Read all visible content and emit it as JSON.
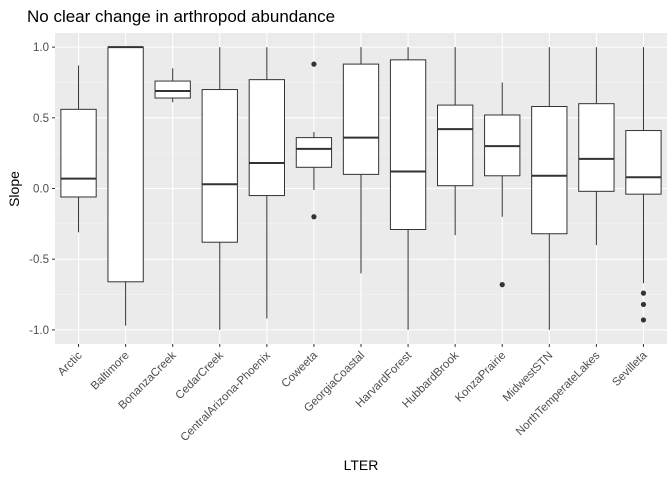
{
  "chart_data": {
    "type": "boxplot",
    "title": "No clear change in arthropod abundance",
    "xlabel": "LTER",
    "ylabel": "Slope",
    "ylim": [
      -1.1,
      1.1
    ],
    "yticks": [
      -1.0,
      -0.5,
      0.0,
      0.5,
      1.0
    ],
    "ytick_labels": [
      "-1.0",
      "-0.5",
      "0.0",
      "0.5",
      "1.0"
    ],
    "grid": true,
    "colors": {
      "panel": "#ebebeb",
      "grid_major": "#ffffff",
      "grid_minor": "#f5f5f5",
      "box_fill": "#ffffff",
      "line": "#333333",
      "outlier": "#333333"
    },
    "categories": [
      "Arctic",
      "Baltimore",
      "BonanzaCreek",
      "CedarCreek",
      "CentralArizona-Phoenix",
      "Coweeta",
      "GeorgiaCoastal",
      "HarvardForest",
      "HubbardBrook",
      "KonzaPrairie",
      "MidwestSTN",
      "NorthTemperateLakes",
      "Sevilleta"
    ],
    "boxes": [
      {
        "min": -0.31,
        "q1": -0.06,
        "median": 0.07,
        "q3": 0.56,
        "max": 0.87,
        "outliers": []
      },
      {
        "min": -0.97,
        "q1": -0.66,
        "median": 1.0,
        "q3": 1.0,
        "max": 1.0,
        "outliers": []
      },
      {
        "min": 0.61,
        "q1": 0.64,
        "median": 0.69,
        "q3": 0.76,
        "max": 0.85,
        "outliers": []
      },
      {
        "min": -1.0,
        "q1": -0.38,
        "median": 0.03,
        "q3": 0.7,
        "max": 1.0,
        "outliers": []
      },
      {
        "min": -0.92,
        "q1": -0.05,
        "median": 0.18,
        "q3": 0.77,
        "max": 1.0,
        "outliers": []
      },
      {
        "min": -0.01,
        "q1": 0.15,
        "median": 0.28,
        "q3": 0.36,
        "max": 0.4,
        "outliers": [
          0.88,
          -0.2
        ]
      },
      {
        "min": -0.6,
        "q1": 0.1,
        "median": 0.36,
        "q3": 0.88,
        "max": 1.0,
        "outliers": []
      },
      {
        "min": -1.0,
        "q1": -0.29,
        "median": 0.12,
        "q3": 0.91,
        "max": 1.0,
        "outliers": []
      },
      {
        "min": -0.33,
        "q1": 0.02,
        "median": 0.42,
        "q3": 0.59,
        "max": 1.0,
        "outliers": []
      },
      {
        "min": -0.2,
        "q1": 0.09,
        "median": 0.3,
        "q3": 0.52,
        "max": 0.75,
        "outliers": [
          -0.68
        ]
      },
      {
        "min": -1.0,
        "q1": -0.32,
        "median": 0.09,
        "q3": 0.58,
        "max": 1.0,
        "outliers": []
      },
      {
        "min": -0.4,
        "q1": -0.02,
        "median": 0.21,
        "q3": 0.6,
        "max": 1.0,
        "outliers": []
      },
      {
        "min": -0.67,
        "q1": -0.04,
        "median": 0.08,
        "q3": 0.41,
        "max": 1.0,
        "outliers": [
          -0.74,
          -0.82,
          -0.93
        ]
      }
    ]
  }
}
